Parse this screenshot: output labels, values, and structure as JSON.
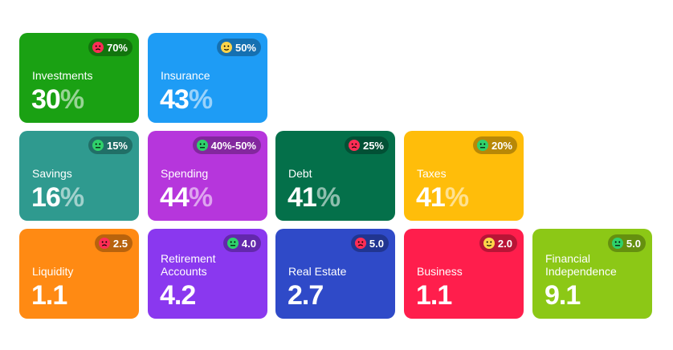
{
  "colors": {
    "investments": "#1aa113",
    "insurance": "#1e9cf5",
    "savings": "#2f9a8f",
    "spending": "#b636dc",
    "debt": "#04704a",
    "taxes": "#ffbd0a",
    "liquidity": "#ff8a13",
    "retirement": "#8a38ef",
    "real_estate": "#2f4ac8",
    "business": "#ff1e4c",
    "financial_independence": "#8cc816",
    "face_bad": "#ff2d55",
    "face_neutral": "#ffd44a",
    "face_good": "#2fd16b"
  },
  "cards": {
    "investments": {
      "label": "Investments",
      "number": "30",
      "unit": "%",
      "badge": "70%",
      "mood": "face-bad-icon"
    },
    "insurance": {
      "label": "Insurance",
      "number": "43",
      "unit": "%",
      "badge": "50%",
      "mood": "face-neutral-icon"
    },
    "savings": {
      "label": "Savings",
      "number": "16",
      "unit": "%",
      "badge": "15%",
      "mood": "face-good-icon"
    },
    "spending": {
      "label": "Spending",
      "number": "44",
      "unit": "%",
      "badge": "40%-50%",
      "mood": "face-good-icon"
    },
    "debt": {
      "label": "Debt",
      "number": "41",
      "unit": "%",
      "badge": "25%",
      "mood": "face-bad-icon"
    },
    "taxes": {
      "label": "Taxes",
      "number": "41",
      "unit": "%",
      "badge": "20%",
      "mood": "face-good-icon"
    },
    "liquidity": {
      "label": "Liquidity",
      "number": "1.1",
      "badge": "2.5",
      "mood": "face-bad-icon"
    },
    "retirement": {
      "label_line1": "Retirement",
      "label_line2": "Accounts",
      "number": "4.2",
      "badge": "4.0",
      "mood": "face-good-icon"
    },
    "real_estate": {
      "label": "Real Estate",
      "number": "2.7",
      "badge": "5.0",
      "mood": "face-bad-icon"
    },
    "business": {
      "label": "Business",
      "number": "1.1",
      "badge": "2.0",
      "mood": "face-neutral-icon"
    },
    "financial_independence": {
      "label_line1": "Financial",
      "label_line2": "Independence",
      "number": "9.1",
      "badge": "5.0",
      "mood": "face-good-icon"
    }
  }
}
